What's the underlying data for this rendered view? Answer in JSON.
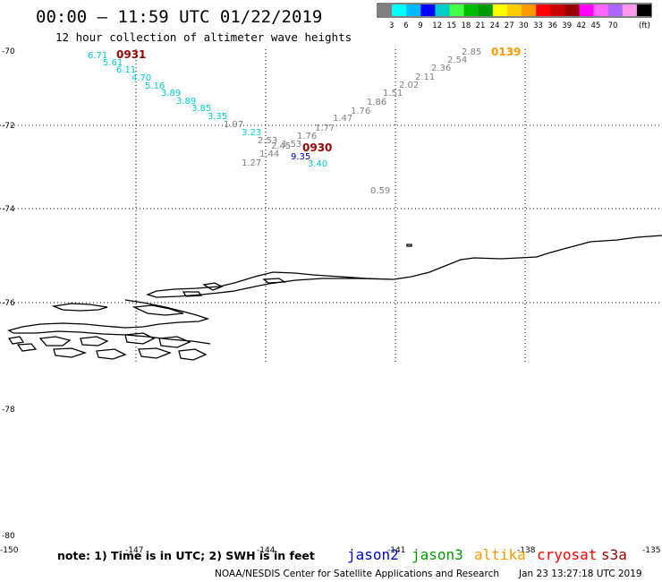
{
  "header": {
    "title": "00:00 – 11:59 UTC 01/22/2019",
    "subtitle": "12 hour collection of altimeter wave heights"
  },
  "legend": {
    "colors": [
      "#808080",
      "#00ffff",
      "#00bbff",
      "#0000ff",
      "#00cccc",
      "#44ff44",
      "#00bb00",
      "#009900",
      "#ffff00",
      "#ffcc00",
      "#ff9900",
      "#ff0000",
      "#cc0000",
      "#990000",
      "#ff00ff",
      "#ff66ff",
      "#aa66ff",
      "#ff99ee",
      "#000000"
    ],
    "ticks": [
      "3",
      "6",
      "9",
      "12",
      "15",
      "18",
      "21",
      "24",
      "27",
      "30",
      "33",
      "36",
      "39",
      "42",
      "45",
      "70"
    ],
    "unit": "(ft)"
  },
  "lat_labels": [
    "-70",
    "-72",
    "-74",
    "-76",
    "-78",
    "-80"
  ],
  "lon_labels": [
    "-150",
    "-147",
    "-144",
    "-141",
    "-138",
    "-135"
  ],
  "observations": [
    {
      "value": "6.71",
      "color": "#00cccc"
    },
    {
      "value": "5.61",
      "color": "#00cccc"
    },
    {
      "value": "6.11",
      "color": "#00cccc"
    },
    {
      "value": "4.70",
      "color": "#00cccc"
    },
    {
      "value": "5.16",
      "color": "#00cccc"
    },
    {
      "value": "3.89",
      "color": "#00cccc"
    },
    {
      "value": "3.89",
      "color": "#00cccc"
    },
    {
      "value": "3.85",
      "color": "#00cccc"
    },
    {
      "value": "3.35",
      "color": "#00cccc"
    },
    {
      "value": "1.97",
      "color": "#808080"
    },
    {
      "value": "3.23",
      "color": "#00cccc"
    },
    {
      "value": "2.53",
      "color": "#808080"
    },
    {
      "value": "2.45",
      "color": "#808080"
    },
    {
      "value": "1.53",
      "color": "#808080"
    },
    {
      "value": "1.44",
      "color": "#808080"
    },
    {
      "value": "1.27",
      "color": "#808080"
    },
    {
      "value": "9.35",
      "color": "#0000cc"
    },
    {
      "value": "3.40",
      "color": "#00cccc"
    },
    {
      "value": "1.76",
      "color": "#808080"
    },
    {
      "value": "1.77",
      "color": "#808080"
    },
    {
      "value": "1.47",
      "color": "#808080"
    },
    {
      "value": "1.76",
      "color": "#808080"
    },
    {
      "value": "1.86",
      "color": "#808080"
    },
    {
      "value": "1.51",
      "color": "#808080"
    },
    {
      "value": "2.02",
      "color": "#808080"
    },
    {
      "value": "2.11",
      "color": "#808080"
    },
    {
      "value": "2.36",
      "color": "#808080"
    },
    {
      "value": "2.54",
      "color": "#808080"
    },
    {
      "value": "2.85",
      "color": "#808080"
    },
    {
      "value": "0.59",
      "color": "#808080"
    }
  ],
  "time_stamps": [
    {
      "text": "0931",
      "color": "#990000"
    },
    {
      "text": "0930",
      "color": "#990000"
    },
    {
      "text": "0139",
      "color": "#ff9900"
    }
  ],
  "note": "note: 1) Time is in UTC; 2) SWH is in feet",
  "satellites": [
    {
      "name": "jason2",
      "color": "#0000cc"
    },
    {
      "name": "jason3",
      "color": "#009900"
    },
    {
      "name": "altika",
      "color": "#ff9900"
    },
    {
      "name": "cryosat",
      "color": "#ff0000"
    },
    {
      "name": "s3a",
      "color": "#990000"
    }
  ],
  "footer": {
    "credit": "NOAA/NESDIS Center for Satellite Applications and Research",
    "generated": "Jan 23 13:27:18 UTC 2019"
  }
}
